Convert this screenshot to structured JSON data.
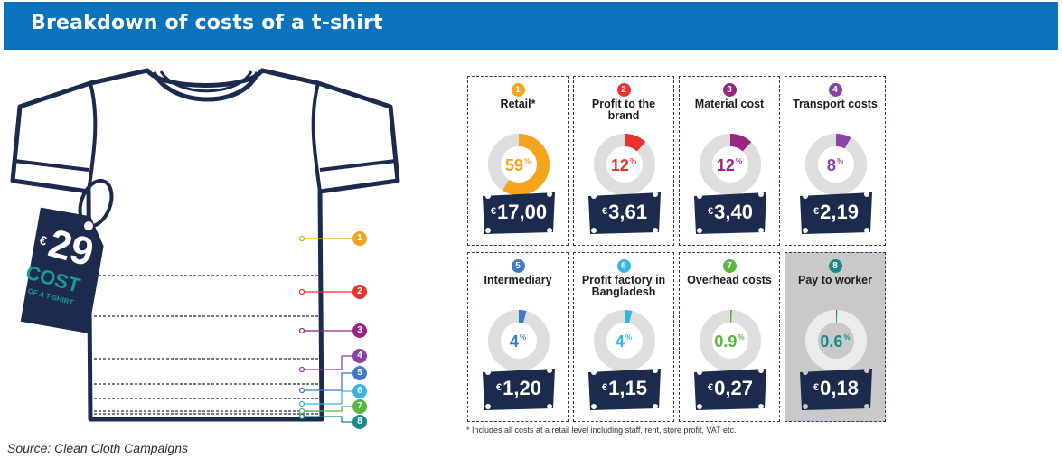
{
  "header": {
    "title": "Breakdown of costs of a t-shirt"
  },
  "source": "Source: Clean Cloth Campaigns",
  "footnote": "* Includes all costs at a retail level including staff, rent, store profit, VAT etc.",
  "tag": {
    "currency": "€",
    "total": "29",
    "word": "COST",
    "sub": "OF A T-SHIRT"
  },
  "colors": {
    "header": "#0b72bc",
    "navy": "#1c2a4e",
    "track": "#dedede",
    "teal": "#1a9a9b"
  },
  "chart_data": {
    "type": "pie",
    "title": "Breakdown of costs of a t-shirt",
    "total": "€29",
    "items": [
      {
        "num": "1",
        "label": "Retail*",
        "percent": 59,
        "pct_text": "59",
        "price": "17,00",
        "color": "#f6a41e"
      },
      {
        "num": "2",
        "label": "Profit to the brand",
        "percent": 12,
        "pct_text": "12",
        "price": "3,61",
        "color": "#e8332e"
      },
      {
        "num": "3",
        "label": "Material cost",
        "percent": 12,
        "pct_text": "12",
        "price": "3,40",
        "color": "#9b2585"
      },
      {
        "num": "4",
        "label": "Transport costs",
        "percent": 8,
        "pct_text": "8",
        "price": "2,19",
        "color": "#8a42a8"
      },
      {
        "num": "5",
        "label": "Intermediary",
        "percent": 4,
        "pct_text": "4",
        "price": "1,20",
        "color": "#3f78c4"
      },
      {
        "num": "6",
        "label": "Profit factory in Bangladesh",
        "percent": 4,
        "pct_text": "4",
        "price": "1,15",
        "color": "#3bb3e8"
      },
      {
        "num": "7",
        "label": "Overhead costs",
        "percent": 0.9,
        "pct_text": "0.9",
        "price": "0,27",
        "color": "#5bb540"
      },
      {
        "num": "8",
        "label": "Pay to worker",
        "percent": 0.6,
        "pct_text": "0.6",
        "price": "0,18",
        "color": "#1a8a87",
        "highlight": true
      }
    ]
  }
}
